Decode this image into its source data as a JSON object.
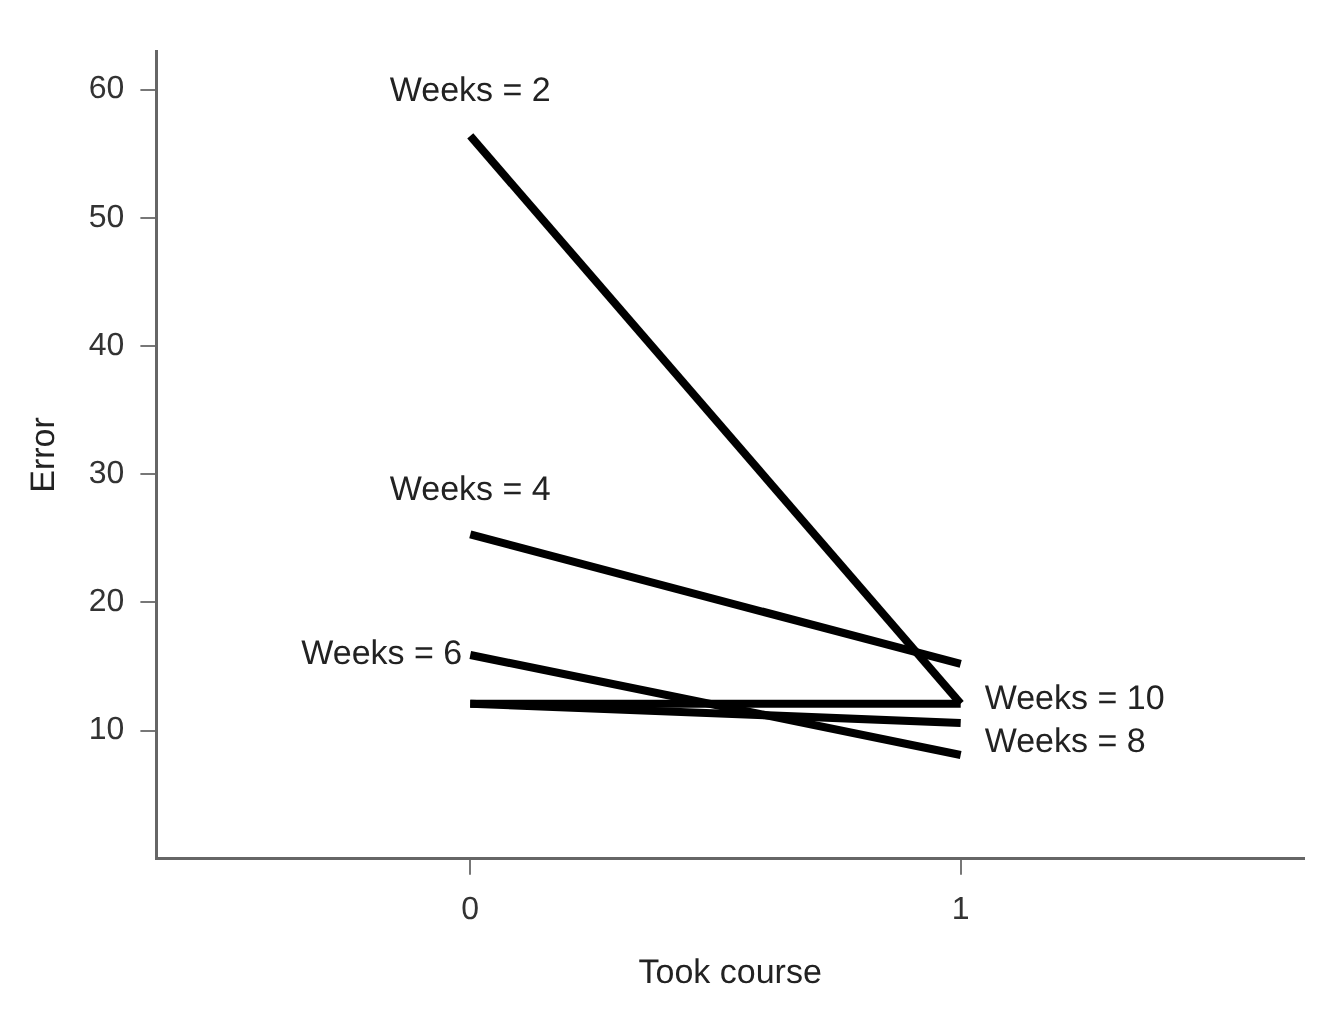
{
  "chart_data": {
    "type": "line",
    "xlabel": "Took course",
    "ylabel": "Error",
    "x": [
      0,
      1
    ],
    "xlim": [
      -0.64,
      1.7
    ],
    "xticks": [
      0,
      1
    ],
    "ylim": [
      0,
      63
    ],
    "yticks": [
      10,
      20,
      30,
      40,
      50,
      60
    ],
    "grid": false,
    "legend": false,
    "marker": "none",
    "line_style": "solid",
    "series": [
      {
        "name": "Weeks = 2",
        "color": "#000000",
        "values": [
          56.4,
          12.1
        ]
      },
      {
        "name": "Weeks = 4",
        "color": "#000000",
        "values": [
          25.3,
          15.2
        ]
      },
      {
        "name": "Weeks = 6",
        "color": "#000000",
        "values": [
          15.9,
          8.1
        ]
      },
      {
        "name": "Weeks = 8",
        "color": "#000000",
        "values": [
          12.1,
          10.6
        ]
      },
      {
        "name": "Weeks = 10",
        "color": "#000000",
        "values": [
          12.1,
          12.1
        ]
      }
    ]
  }
}
